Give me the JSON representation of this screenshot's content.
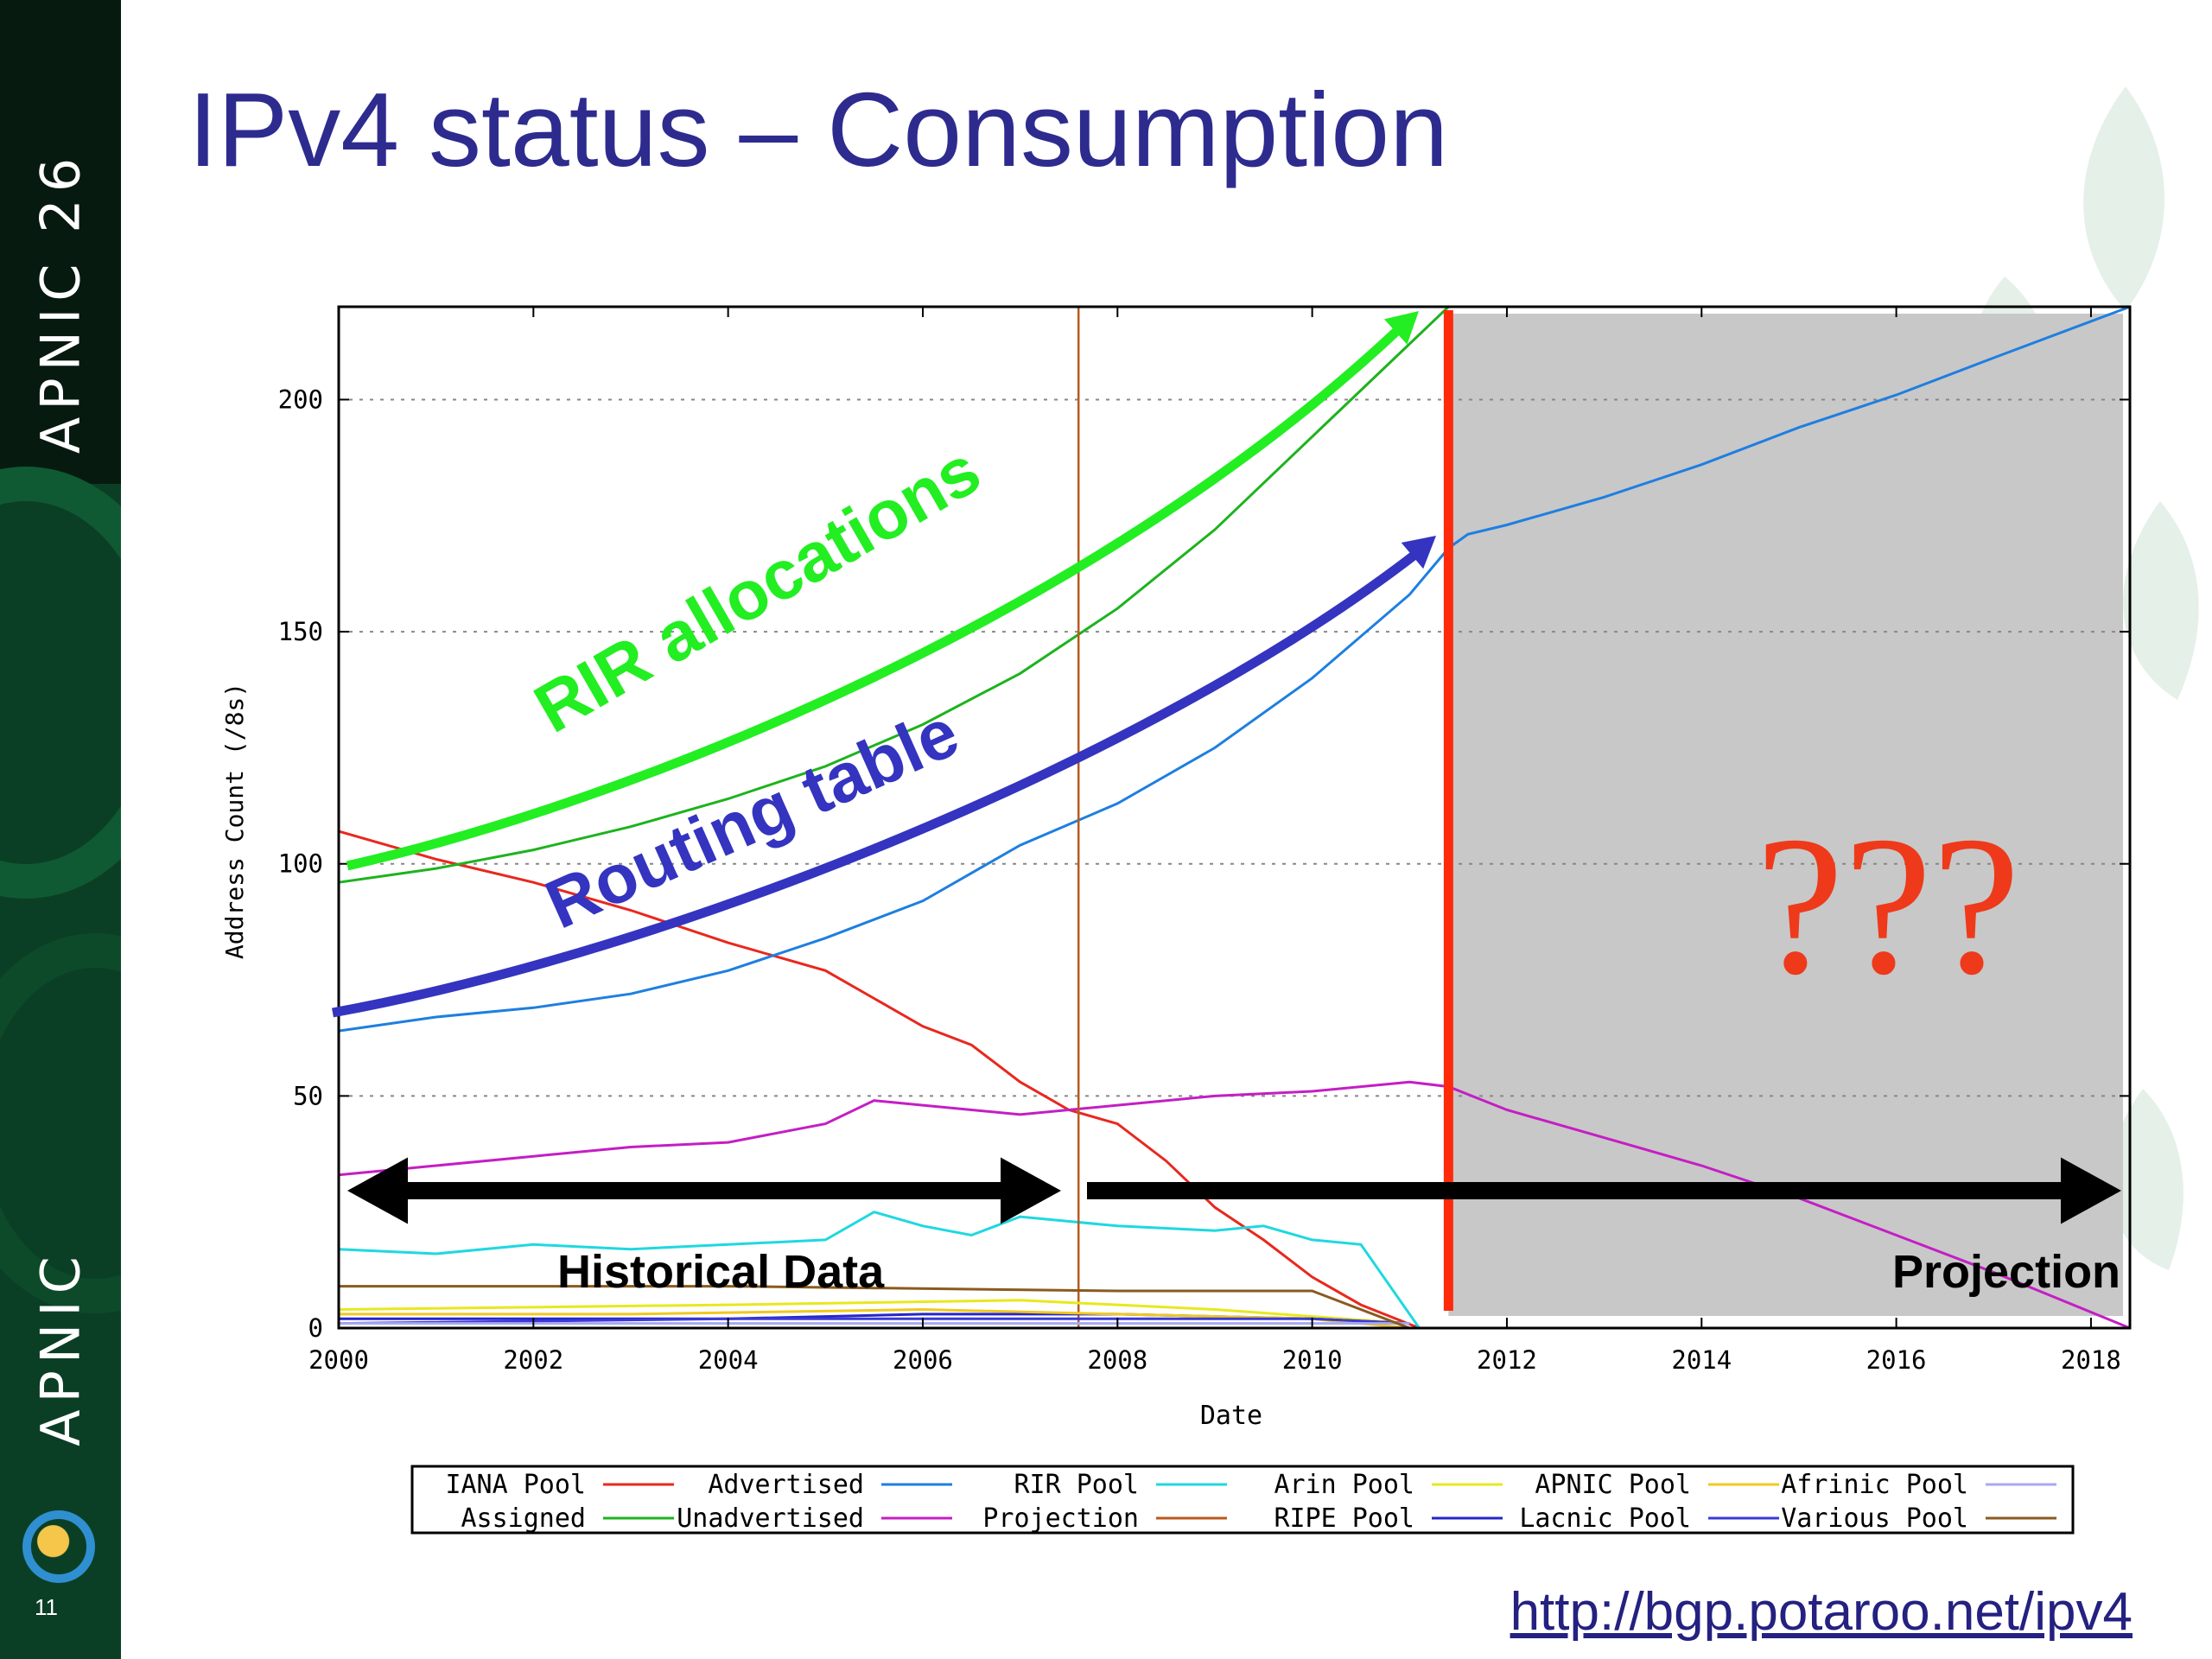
{
  "sidebar": {
    "conference_label": "APNIC 26",
    "org_label": "APNIC",
    "slide_number": "11",
    "logo_icon": "apnic-logo-icon"
  },
  "slide": {
    "title": "IPv4 status – Consumption",
    "source_url": "http://bgp.potaroo.net/ipv4"
  },
  "colors": {
    "title": "#2e2b8f",
    "sidebar": "#0b3f25",
    "iana": "#e8281e",
    "assigned": "#1db31d",
    "advertised": "#1e7fe0",
    "unadvertised": "#c41ec4",
    "rir_pool": "#1fd8e0",
    "projection": "#b85a1e",
    "arin": "#e8e81e",
    "ripe": "#2626c8",
    "apnic": "#f0c81e",
    "lacnic": "#3a3ad8",
    "afrinic": "#a8a8f0",
    "various": "#8a5a1e",
    "cutoff": "#ff2a0a",
    "rir_annotation": "#22ee22",
    "routing_annotation": "#3434c0",
    "question_marks": "#ee3a1a"
  },
  "chart_data": {
    "type": "line",
    "title": "",
    "xlabel": "Date",
    "ylabel": "Address Count (/8s)",
    "xlim": [
      2000,
      2018.4
    ],
    "ylim": [
      0,
      220
    ],
    "x_ticks": [
      "2000",
      "2002",
      "2004",
      "2006",
      "2008",
      "2010",
      "2012",
      "2014",
      "2016",
      "2018"
    ],
    "y_ticks": [
      "0",
      "50",
      "100",
      "150",
      "200"
    ],
    "grid": "horizontal dashed",
    "legend_placement": "below chart",
    "series": [
      {
        "name": "IANA Pool",
        "color": "#e8281e",
        "x": [
          2000,
          2000.5,
          2001,
          2002,
          2003,
          2004,
          2005,
          2005.5,
          2006,
          2006.5,
          2007,
          2007.5,
          2008,
          2008.5,
          2009,
          2009.5,
          2010,
          2010.5,
          2011.1
        ],
        "y": [
          107,
          104,
          101,
          96,
          90,
          83,
          77,
          71,
          65,
          61,
          53,
          47,
          44,
          36,
          26,
          19,
          11,
          5,
          0
        ]
      },
      {
        "name": "Assigned",
        "color": "#1db31d",
        "x": [
          2000,
          2001,
          2002,
          2003,
          2004,
          2005,
          2006,
          2007,
          2008,
          2009,
          2010,
          2011,
          2011.4
        ],
        "y": [
          96,
          99,
          103,
          108,
          114,
          121,
          130,
          141,
          155,
          172,
          192,
          212,
          220
        ]
      },
      {
        "name": "Advertised",
        "color": "#1e7fe0",
        "x": [
          2000,
          2001,
          2002,
          2003,
          2004,
          2005,
          2006,
          2007,
          2008,
          2009,
          2010,
          2011,
          2011.4,
          2011.6,
          2012,
          2013,
          2014,
          2015,
          2016,
          2017,
          2018.4
        ],
        "y": [
          64,
          67,
          69,
          72,
          77,
          84,
          92,
          104,
          113,
          125,
          140,
          158,
          168,
          171,
          173,
          179,
          186,
          194,
          201,
          209,
          220
        ]
      },
      {
        "name": "Unadvertised",
        "color": "#c41ec4",
        "x": [
          2000,
          2001,
          2002,
          2003,
          2004,
          2005,
          2005.5,
          2006,
          2007,
          2008,
          2009,
          2010,
          2011,
          2011.4,
          2012,
          2013,
          2014,
          2015,
          2016,
          2017,
          2018.4
        ],
        "y": [
          33,
          35,
          37,
          39,
          40,
          44,
          49,
          48,
          46,
          48,
          50,
          51,
          53,
          52,
          47,
          41,
          35,
          28,
          20,
          12,
          0
        ]
      },
      {
        "name": "RIR Pool",
        "color": "#1fd8e0",
        "x": [
          2000,
          2001,
          2002,
          2003,
          2004,
          2005,
          2005.5,
          2006,
          2006.5,
          2007,
          2008,
          2009,
          2009.5,
          2010,
          2010.5,
          2011.1
        ],
        "y": [
          17,
          16,
          18,
          17,
          18,
          19,
          25,
          22,
          20,
          24,
          22,
          21,
          22,
          19,
          18,
          0
        ]
      },
      {
        "name": "Projection",
        "color": "#b85a1e",
        "x": [
          2007.6,
          2007.6
        ],
        "y": [
          0,
          220
        ]
      },
      {
        "name": "Arin Pool",
        "color": "#e8e81e",
        "x": [
          2000,
          2004,
          2007,
          2009,
          2011
        ],
        "y": [
          4,
          5,
          6,
          4,
          1
        ]
      },
      {
        "name": "RIPE Pool",
        "color": "#2626c8",
        "x": [
          2000,
          2004,
          2006,
          2008,
          2010,
          2011
        ],
        "y": [
          2,
          2,
          3,
          3,
          2,
          1
        ]
      },
      {
        "name": "APNIC Pool",
        "color": "#f0c81e",
        "x": [
          2000,
          2003,
          2006,
          2008,
          2010,
          2011
        ],
        "y": [
          3,
          3,
          4,
          3,
          2,
          0
        ]
      },
      {
        "name": "Lacnic Pool",
        "color": "#3a3ad8",
        "x": [
          2000,
          2004,
          2007,
          2010,
          2011
        ],
        "y": [
          1,
          2,
          2,
          2,
          1
        ]
      },
      {
        "name": "Afrinic Pool",
        "color": "#a8a8f0",
        "x": [
          2000,
          2005,
          2010,
          2011
        ],
        "y": [
          1,
          1,
          1,
          1
        ]
      },
      {
        "name": "Various Pool",
        "color": "#8a5a1e",
        "x": [
          2000,
          2004,
          2008,
          2010,
          2011
        ],
        "y": [
          9,
          9,
          8,
          8,
          0
        ]
      }
    ],
    "annotations": {
      "rir_allocations": "RIR allocations",
      "routing_table": "Routing table",
      "unknown": "???",
      "historical": "Historical Data",
      "projection": "Projection"
    },
    "cutoff_x": 2011.4,
    "projection_region": [
      2011.4,
      2018.4
    ]
  }
}
